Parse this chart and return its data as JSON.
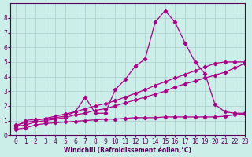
{
  "bg_color": "#cceee8",
  "grid_color": "#aacccc",
  "line_color": "#aa0088",
  "xlabel": "Windchill (Refroidissement éolien,°C)",
  "xlim": [
    -0.5,
    23
  ],
  "ylim": [
    0,
    9
  ],
  "xticks": [
    0,
    1,
    2,
    3,
    4,
    5,
    6,
    7,
    8,
    9,
    10,
    11,
    12,
    13,
    14,
    15,
    16,
    17,
    18,
    19,
    20,
    21,
    22,
    23
  ],
  "yticks": [
    0,
    1,
    2,
    3,
    4,
    5,
    6,
    7,
    8
  ],
  "line1_x": [
    0,
    1,
    2,
    3,
    4,
    5,
    6,
    7,
    8,
    9,
    10,
    11,
    12,
    13,
    14,
    15,
    16,
    17,
    18,
    19,
    20,
    21,
    22,
    23
  ],
  "line1_y": [
    0.5,
    1.0,
    1.1,
    1.1,
    1.2,
    1.3,
    1.6,
    2.6,
    1.5,
    1.5,
    3.1,
    3.8,
    4.7,
    5.2,
    7.7,
    8.5,
    7.7,
    6.3,
    5.0,
    4.2,
    2.1,
    1.6,
    1.5,
    1.5
  ],
  "line2_x": [
    0,
    1,
    2,
    3,
    4,
    5,
    6,
    7,
    8,
    9,
    10,
    11,
    12,
    13,
    14,
    15,
    16,
    17,
    18,
    19,
    20,
    21,
    22,
    23
  ],
  "line2_y": [
    0.6,
    0.7,
    0.9,
    1.0,
    1.1,
    1.2,
    1.4,
    1.5,
    1.7,
    1.8,
    2.0,
    2.2,
    2.4,
    2.6,
    2.8,
    3.0,
    3.3,
    3.5,
    3.7,
    3.9,
    4.1,
    4.3,
    4.6,
    4.9
  ],
  "line3_x": [
    0,
    1,
    2,
    3,
    4,
    5,
    6,
    7,
    8,
    9,
    10,
    11,
    12,
    13,
    14,
    15,
    16,
    17,
    18,
    19,
    20,
    21,
    22,
    23
  ],
  "line3_y": [
    0.7,
    0.85,
    1.0,
    1.15,
    1.3,
    1.45,
    1.6,
    1.8,
    2.0,
    2.15,
    2.35,
    2.6,
    2.85,
    3.1,
    3.4,
    3.65,
    3.9,
    4.15,
    4.4,
    4.65,
    4.9,
    5.0,
    5.0,
    5.0
  ],
  "line4_x": [
    0,
    1,
    2,
    3,
    4,
    5,
    6,
    7,
    8,
    9,
    10,
    11,
    12,
    13,
    14,
    15,
    16,
    17,
    18,
    19,
    20,
    21,
    22,
    23
  ],
  "line4_y": [
    0.4,
    0.5,
    0.7,
    0.8,
    0.85,
    0.9,
    0.95,
    1.0,
    1.05,
    1.1,
    1.1,
    1.15,
    1.2,
    1.2,
    1.2,
    1.25,
    1.25,
    1.25,
    1.25,
    1.25,
    1.25,
    1.3,
    1.4,
    1.45
  ],
  "tick_color": "#550055",
  "tick_fontsize": 5.5,
  "label_fontsize": 5.5,
  "marker_size": 2.2,
  "lw": 0.9
}
